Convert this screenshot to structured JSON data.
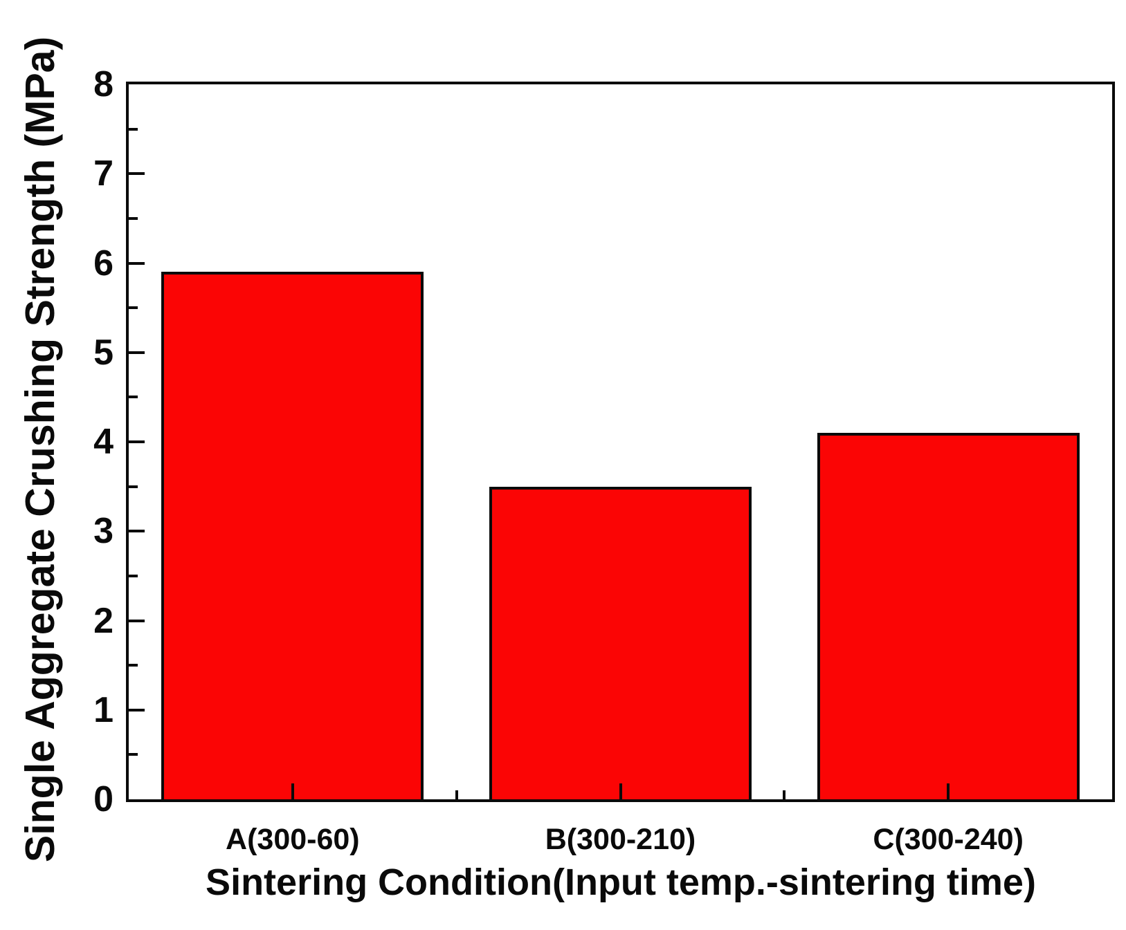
{
  "chart_data": {
    "type": "bar",
    "title": "",
    "categories": [
      "A(300-60)",
      "B(300-210)",
      "C(300-240)"
    ],
    "values": [
      5.9,
      3.5,
      4.1
    ],
    "xlabel": "Sintering Condition(Input temp.-sintering time)",
    "ylabel": "Single Aggregate Crushing Strength (MPa)",
    "ylim": [
      0,
      8
    ],
    "y_major_step": 1,
    "y_minor_step": 0.5,
    "y_tick_labels": [
      "0",
      "1",
      "2",
      "3",
      "4",
      "5",
      "6",
      "7",
      "8"
    ],
    "x_minor_ticks_between_categories": true,
    "bar_color": "#fb0505",
    "bar_border_color": "#0a0a0a",
    "axis_color": "#0a0a0a",
    "bar_width_frac": 0.8,
    "grid": false,
    "legend": null
  }
}
